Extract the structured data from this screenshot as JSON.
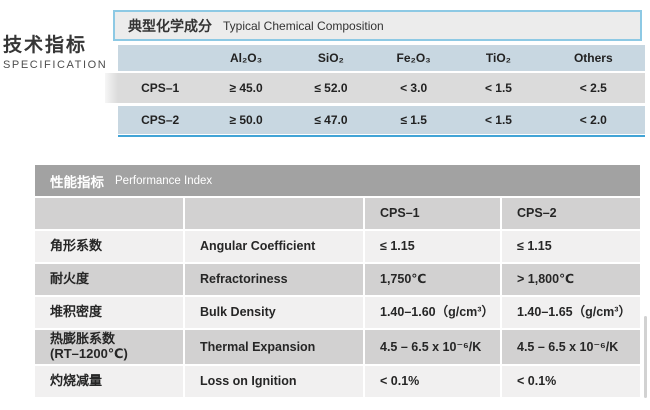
{
  "side_label": {
    "zh": "技术指标",
    "en": "SPECIFICATION"
  },
  "chem_table": {
    "title_zh": "典型化学成分",
    "title_en": "Typical Chemical Composition",
    "columns": [
      "Al₂O₃",
      "SiO₂",
      "Fe₂O₃",
      "TiO₂",
      "Others"
    ],
    "rows": [
      {
        "name": "CPS–1",
        "values": [
          "≥ 45.0",
          "≤ 52.0",
          "< 3.0",
          "< 1.5",
          "< 2.5"
        ]
      },
      {
        "name": "CPS–2",
        "values": [
          "≥ 50.0",
          "≤ 47.0",
          "≤ 1.5",
          "< 1.5",
          "< 2.0"
        ]
      }
    ]
  },
  "perf_table": {
    "title_zh": "性能指标",
    "title_en": "Performance Index",
    "columns": [
      "CPS–1",
      "CPS–2"
    ],
    "rows": [
      {
        "zh": "角形系数",
        "en": "Angular Coefficient",
        "cps1": "≤ 1.15",
        "cps2": "≤ 1.15"
      },
      {
        "zh": "耐火度",
        "en": "Refractoriness",
        "cps1": "1,750℃",
        "cps2": "> 1,800℃"
      },
      {
        "zh": "堆积密度",
        "en": "Bulk Density",
        "cps1": "1.40–1.60（g/cm³）",
        "cps2": "1.40–1.65（g/cm³）"
      },
      {
        "zh": "热膨胀系数",
        "zh_sub": "(RT–1200℃)",
        "en": "Thermal Expansion",
        "cps1": "4.5 – 6.5 x 10⁻⁶/K",
        "cps2": "4.5 – 6.5 x 10⁻⁶/K"
      },
      {
        "zh": "灼烧减量",
        "en": "Loss on Ignition",
        "cps1": "< 0.1%",
        "cps2": "< 0.1%"
      }
    ]
  },
  "colors": {
    "accent_blue_border": "#8dc9e4",
    "accent_blue_line": "#42a4d6",
    "blue_row": "#c8d7e1",
    "grey_row": "#dbdbdb",
    "perf_header_grey": "#a2a2a2",
    "perf_grey_row": "#d2d1d1",
    "perf_light_row": "#f1f0f0"
  }
}
